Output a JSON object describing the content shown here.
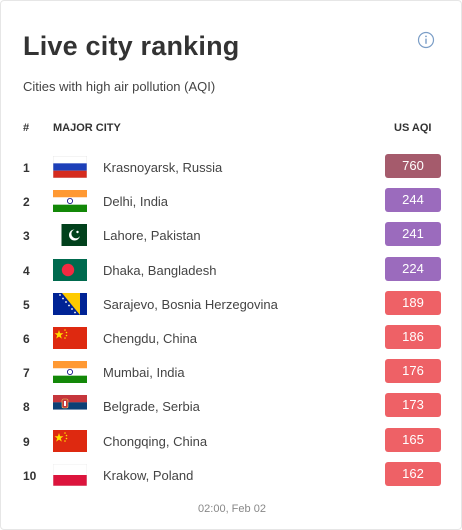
{
  "widget": {
    "title": "Live city ranking",
    "subtitle": "Cities with high air pollution (AQI)",
    "info_icon": "info-icon",
    "footer": "02:00, Feb 02"
  },
  "table": {
    "columns": {
      "rank": "#",
      "city": "MAJOR CITY",
      "aqi": "US AQI"
    },
    "rows": [
      {
        "rank": "1",
        "flag": "russia",
        "city": "Krasnoyarsk, Russia",
        "aqi": "760",
        "color": "#a55b6c"
      },
      {
        "rank": "2",
        "flag": "india",
        "city": "Delhi, India",
        "aqi": "244",
        "color": "#9b6bbd"
      },
      {
        "rank": "3",
        "flag": "pakistan",
        "city": "Lahore, Pakistan",
        "aqi": "241",
        "color": "#9b6bbd"
      },
      {
        "rank": "4",
        "flag": "bangladesh",
        "city": "Dhaka, Bangladesh",
        "aqi": "224",
        "color": "#9b6bbd"
      },
      {
        "rank": "5",
        "flag": "bosnia",
        "city": "Sarajevo, Bosnia Herzegovina",
        "aqi": "189",
        "color": "#ee6166"
      },
      {
        "rank": "6",
        "flag": "china",
        "city": "Chengdu, China",
        "aqi": "186",
        "color": "#ee6166"
      },
      {
        "rank": "7",
        "flag": "india",
        "city": "Mumbai, India",
        "aqi": "176",
        "color": "#ee6166"
      },
      {
        "rank": "8",
        "flag": "serbia",
        "city": "Belgrade, Serbia",
        "aqi": "173",
        "color": "#ee6166"
      },
      {
        "rank": "9",
        "flag": "china",
        "city": "Chongqing, China",
        "aqi": "165",
        "color": "#ee6166"
      },
      {
        "rank": "10",
        "flag": "poland",
        "city": "Krakow, Poland",
        "aqi": "162",
        "color": "#ee6166"
      }
    ]
  }
}
